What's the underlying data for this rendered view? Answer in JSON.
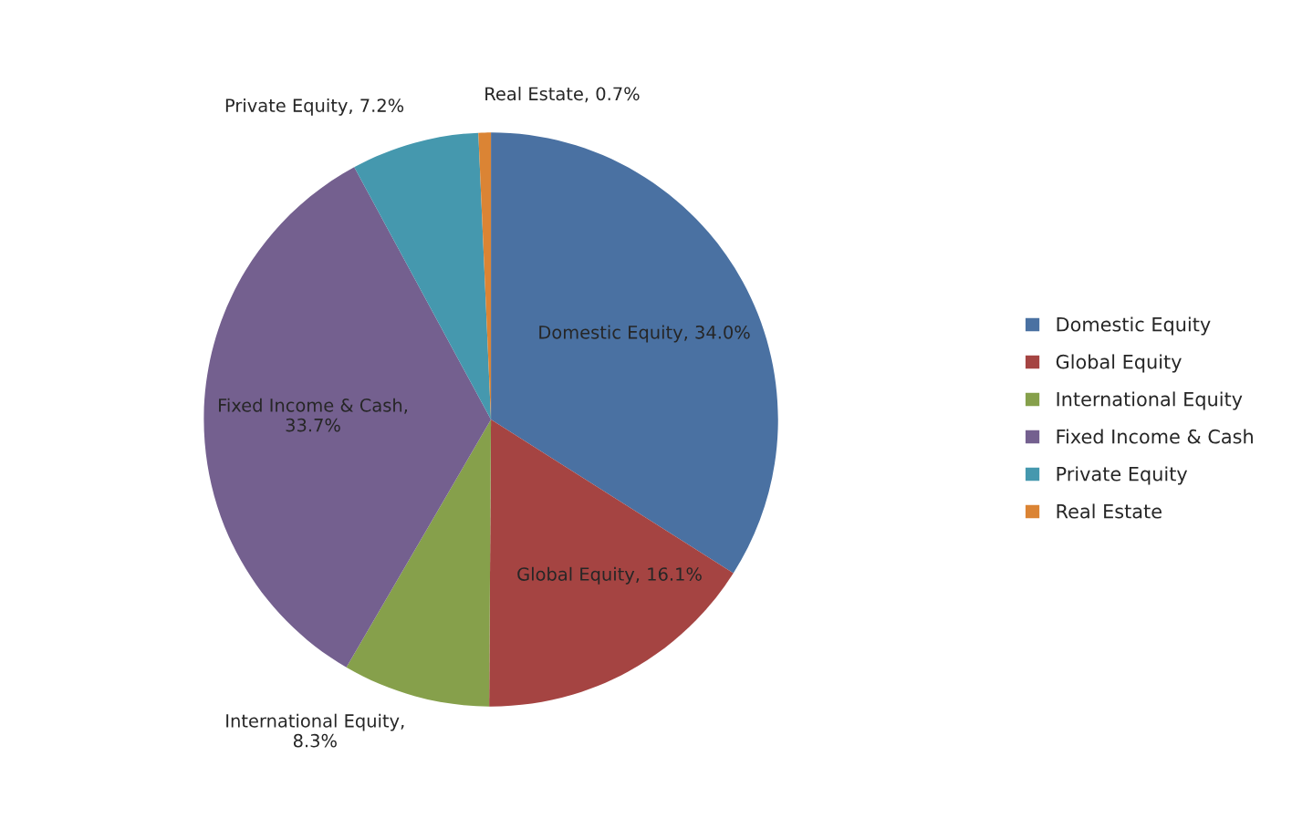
{
  "chart_data": {
    "type": "pie",
    "categories": [
      "Domestic Equity",
      "Global Equity",
      "International Equity",
      "Fixed Income & Cash",
      "Private Equity",
      "Real Estate"
    ],
    "values": [
      34.0,
      16.1,
      8.3,
      33.7,
      7.2,
      0.7
    ],
    "colors": [
      "#4a71a2",
      "#a54442",
      "#86a04b",
      "#74608f",
      "#4598ae",
      "#db8434"
    ],
    "value_labels": [
      "Domestic Equity, 34.0%",
      "Global Equity, 16.1%",
      "International Equity,\n8.3%",
      "Fixed Income & Cash,\n33.7%",
      "Private Equity, 7.2%",
      "Real Estate, 0.7%"
    ],
    "legend": "right"
  }
}
